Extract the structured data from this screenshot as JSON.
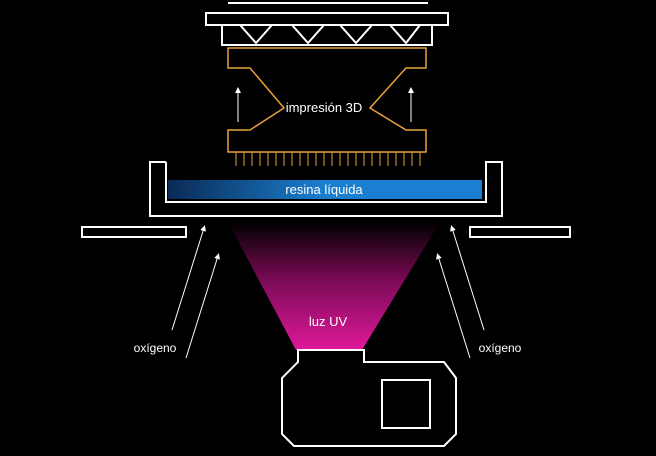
{
  "labels": {
    "print": "impresión 3D",
    "resin": "resina líquida",
    "uv": "luz UV",
    "oxygen_left": "oxígeno",
    "oxygen_right": "oxígeno"
  },
  "colors": {
    "background": "#000000",
    "outline": "#ffffff",
    "print_object": "#e8a23a",
    "resin_blue": "#1a7fd0",
    "uv_magenta": "#e0189a"
  }
}
